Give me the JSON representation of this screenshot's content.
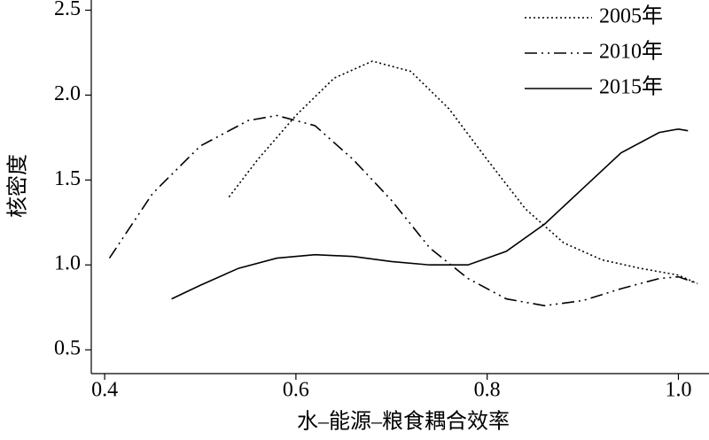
{
  "chart_data": {
    "type": "line",
    "xlabel": "水–能源–粮食耦合效率",
    "ylabel": "核密度",
    "xlim": [
      0.386,
      1.032
    ],
    "ylim": [
      0.36,
      2.56
    ],
    "xticks": [
      0.4,
      0.6,
      0.8,
      {
        "value": 1,
        "label": "1.0"
      }
    ],
    "yticks": [
      0.5,
      {
        "value": 1,
        "label": "1.0"
      },
      1.5,
      {
        "value": 2,
        "label": "2.0"
      },
      2.5
    ],
    "legend": "upper right",
    "series": [
      {
        "name": "2005年",
        "color": "#000000",
        "style": "dotted",
        "x": [
          0.53,
          0.56,
          0.6,
          0.64,
          0.68,
          0.72,
          0.76,
          0.8,
          0.84,
          0.88,
          0.92,
          0.96,
          1.0,
          1.02
        ],
        "values": [
          1.4,
          1.62,
          1.88,
          2.1,
          2.2,
          2.14,
          1.92,
          1.62,
          1.33,
          1.13,
          1.03,
          0.98,
          0.94,
          0.89
        ]
      },
      {
        "name": "2010年",
        "color": "#000000",
        "style": "dashdot",
        "x": [
          0.405,
          0.45,
          0.5,
          0.55,
          0.58,
          0.62,
          0.66,
          0.7,
          0.74,
          0.78,
          0.82,
          0.86,
          0.9,
          0.94,
          0.98,
          1.0,
          1.02
        ],
        "values": [
          1.04,
          1.42,
          1.7,
          1.85,
          1.88,
          1.82,
          1.62,
          1.38,
          1.1,
          0.92,
          0.8,
          0.76,
          0.79,
          0.86,
          0.92,
          0.93,
          0.89
        ]
      },
      {
        "name": "2015年",
        "color": "#000000",
        "style": "solid",
        "x": [
          0.47,
          0.5,
          0.54,
          0.58,
          0.62,
          0.66,
          0.7,
          0.74,
          0.78,
          0.82,
          0.86,
          0.9,
          0.94,
          0.98,
          1.0,
          1.01
        ],
        "values": [
          0.8,
          0.88,
          0.98,
          1.04,
          1.06,
          1.05,
          1.02,
          1.0,
          1.0,
          1.08,
          1.24,
          1.45,
          1.66,
          1.78,
          1.8,
          1.79
        ]
      }
    ]
  }
}
